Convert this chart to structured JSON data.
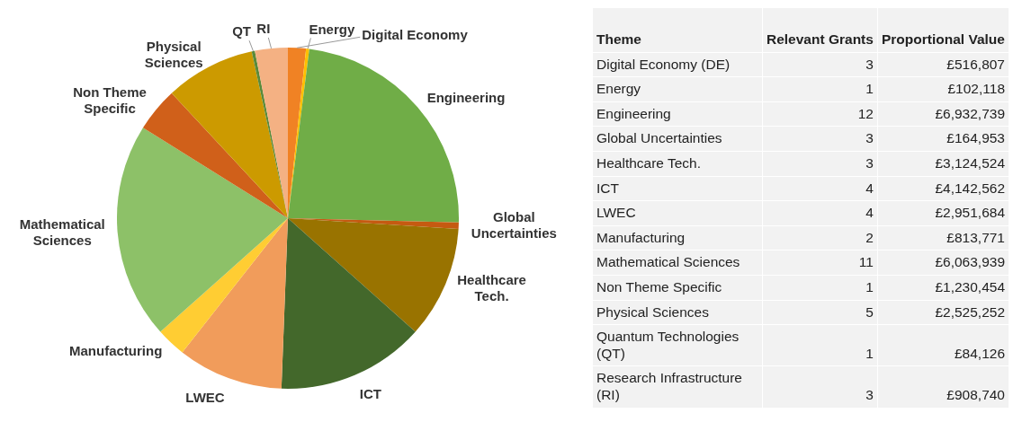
{
  "chart_data": [
    {
      "type": "pie",
      "categories": [
        "Digital Economy",
        "Energy",
        "Engineering",
        "Global Uncertainties",
        "Healthcare Tech.",
        "ICT",
        "LWEC",
        "Manufacturing",
        "Mathematical Sciences",
        "Non Theme Specific",
        "Physical Sciences",
        "QT",
        "RI"
      ],
      "values": [
        1.7,
        0.3,
        23.4,
        0.6,
        10.6,
        14.0,
        10.0,
        2.8,
        20.5,
        4.2,
        8.5,
        0.3,
        3.1
      ],
      "colors": [
        "#f08224",
        "#ffc000",
        "#70ad47",
        "#c55a11",
        "#997300",
        "#43682b",
        "#f19c5b",
        "#ffcd33",
        "#8dc168",
        "#d0601a",
        "#cc9a00",
        "#5a8a3a",
        "#f4b183"
      ],
      "legend": false
    },
    {
      "type": "other",
      "xlabel": "Theme",
      "categories": [
        "Digital Economy (DE)",
        "Energy",
        "Engineering",
        "Global Uncertainties",
        "Healthcare Tech.",
        "ICT",
        "LWEC",
        "Manufacturing",
        "Mathematical Sciences",
        "Non Theme Specific",
        "Physical Sciences",
        "Quantum Technologies (QT)",
        "Research Infrastructure (RI)"
      ],
      "series": [
        {
          "name": "Relevant Grants",
          "values": [
            3,
            1,
            12,
            3,
            3,
            4,
            4,
            2,
            11,
            1,
            5,
            1,
            3
          ]
        },
        {
          "name": "Proportional Value",
          "values": [
            516807,
            102118,
            6932739,
            164953,
            3124524,
            4142562,
            2951684,
            813771,
            6063939,
            1230454,
            2525252,
            84126,
            908740
          ],
          "value_labels": [
            "£516,807",
            "£102,118",
            "£6,932,739",
            "£164,953",
            "£3,124,524",
            "£4,142,562",
            "£2,951,684",
            "£813,771",
            "£6,063,939",
            "£1,230,454",
            "£2,525,252",
            "£84,126",
            "£908,740"
          ]
        }
      ],
      "data_labels": true
    }
  ]
}
